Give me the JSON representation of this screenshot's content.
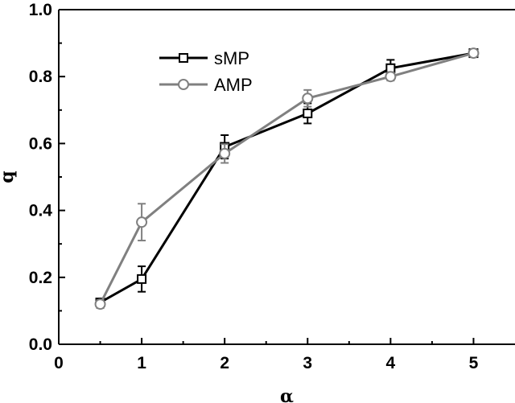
{
  "chart_data": {
    "type": "line",
    "title": "",
    "xlabel": "α",
    "ylabel": "q",
    "xlim": [
      0,
      5.5
    ],
    "ylim": [
      0,
      1.0
    ],
    "xticks": [
      0,
      1,
      2,
      3,
      4,
      5
    ],
    "yticks": [
      0.0,
      0.2,
      0.4,
      0.6,
      0.8,
      1.0
    ],
    "xtick_labels": [
      "0",
      "1",
      "2",
      "3",
      "4",
      "5"
    ],
    "ytick_labels": [
      "0.0",
      "0.2",
      "0.4",
      "0.6",
      "0.8",
      "1.0"
    ],
    "grid": false,
    "legend": "top-left",
    "series": [
      {
        "name": "sMP",
        "marker": "square",
        "color": "#000000",
        "x": [
          0.5,
          1,
          2,
          3,
          4,
          5
        ],
        "y": [
          0.125,
          0.195,
          0.59,
          0.69,
          0.825,
          0.87
        ],
        "err": [
          0.012,
          0.038,
          0.035,
          0.03,
          0.025,
          0.01
        ]
      },
      {
        "name": "AMP",
        "marker": "circle",
        "color": "#808080",
        "x": [
          0.5,
          1,
          2,
          3,
          4,
          5
        ],
        "y": [
          0.12,
          0.365,
          0.57,
          0.735,
          0.8,
          0.87
        ],
        "err": [
          0.012,
          0.055,
          0.028,
          0.025,
          0.012,
          0.01
        ]
      }
    ]
  }
}
